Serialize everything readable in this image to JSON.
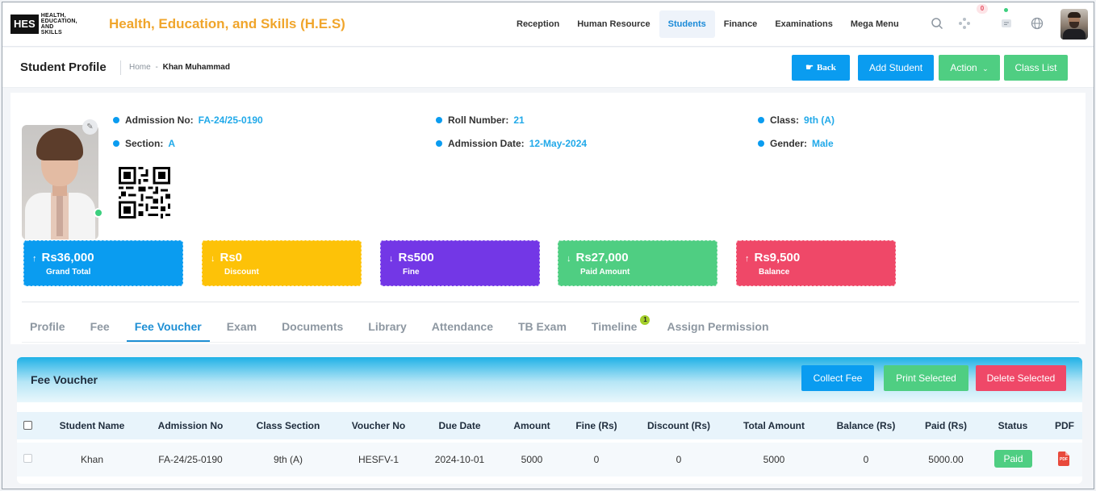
{
  "app": {
    "logo_mark": "HES",
    "logo_sub": "HEALTH, EDUCATION, AND SKILLS",
    "title": "Health, Education, and Skills (H.E.S)"
  },
  "nav": {
    "items": [
      {
        "label": "Reception",
        "active": false
      },
      {
        "label": "Human Resource",
        "active": false
      },
      {
        "label": "Students",
        "active": true
      },
      {
        "label": "Finance",
        "active": false
      },
      {
        "label": "Examinations",
        "active": false
      },
      {
        "label": "Mega Menu",
        "active": false
      }
    ],
    "notification_count": "0",
    "icons": [
      "search-icon",
      "apps-icon",
      "chat-icon",
      "globe-icon"
    ]
  },
  "header": {
    "title": "Student Profile",
    "breadcrumb_home": "Home",
    "breadcrumb_sep": "-",
    "breadcrumb_current": "Khan Muhammad",
    "back_label": "Back",
    "add_student_label": "Add Student",
    "action_label": "Action",
    "class_list_label": "Class List"
  },
  "profile": {
    "admission_no_label": "Admission No:",
    "admission_no": "FA-24/25-0190",
    "roll_number_label": "Roll Number:",
    "roll_number": "21",
    "class_label": "Class:",
    "class": "9th (A)",
    "section_label": "Section:",
    "section": "A",
    "admission_date_label": "Admission Date:",
    "admission_date": "12-May-2024",
    "gender_label": "Gender:",
    "gender": "Male"
  },
  "stats": [
    {
      "amount": "Rs36,000",
      "label": "Grand Total",
      "direction": "up",
      "color": "#0a9cf0"
    },
    {
      "amount": "Rs0",
      "label": "Discount",
      "direction": "down",
      "color": "#fdc208"
    },
    {
      "amount": "Rs500",
      "label": "Fine",
      "direction": "down",
      "color": "#7337e6"
    },
    {
      "amount": "Rs27,000",
      "label": "Paid Amount",
      "direction": "down",
      "color": "#4fce82"
    },
    {
      "amount": "Rs9,500",
      "label": "Balance",
      "direction": "up",
      "color": "#ef4868"
    }
  ],
  "tabs": [
    {
      "label": "Profile",
      "active": false
    },
    {
      "label": "Fee",
      "active": false
    },
    {
      "label": "Fee Voucher",
      "active": true
    },
    {
      "label": "Exam",
      "active": false
    },
    {
      "label": "Documents",
      "active": false
    },
    {
      "label": "Library",
      "active": false
    },
    {
      "label": "Attendance",
      "active": false
    },
    {
      "label": "TB Exam",
      "active": false
    },
    {
      "label": "Timeline",
      "active": false,
      "badge": "1"
    },
    {
      "label": "Assign Permission",
      "active": false
    }
  ],
  "voucher_panel": {
    "title": "Fee Voucher",
    "collect_label": "Collect Fee",
    "print_label": "Print Selected",
    "delete_label": "Delete Selected",
    "columns": [
      "Student Name",
      "Admission No",
      "Class Section",
      "Voucher No",
      "Due Date",
      "Amount",
      "Fine (Rs)",
      "Discount (Rs)",
      "Total Amount",
      "Balance (Rs)",
      "Paid (Rs)",
      "Status",
      "PDF"
    ],
    "rows": [
      {
        "student_name": "Khan",
        "admission_no": "FA-24/25-0190",
        "class_section": "9th (A)",
        "voucher_no": "HESFV-1",
        "due_date": "2024-10-01",
        "amount": "5000",
        "fine": "0",
        "discount": "0",
        "total_amount": "5000",
        "balance": "0",
        "paid": "5000.00",
        "status": "Paid",
        "pdf_text": "PDF"
      }
    ]
  }
}
